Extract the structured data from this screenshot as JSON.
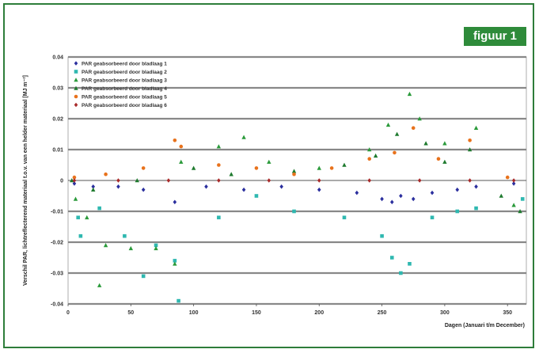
{
  "figure_label": "figuur 1",
  "chart_data": {
    "type": "scatter",
    "title": "",
    "xlabel": "Dagen (Januari t/m December)",
    "ylabel": "Verschil PAR, lichtreflecterend materiaal t.o.v. van een helder materiaal [MJ m⁻²]",
    "xlim": [
      0,
      365
    ],
    "ylim": [
      -0.04,
      0.04
    ],
    "x_ticks": [
      0,
      50,
      100,
      150,
      200,
      250,
      300,
      350
    ],
    "y_ticks": [
      0.04,
      0.03,
      0.02,
      0.01,
      0,
      -0.01,
      -0.02,
      -0.03,
      -0.04
    ],
    "y_tick_labels": [
      "0.04",
      "0.03",
      "0.02",
      "0.01",
      "0",
      "-0.01",
      "-0.02",
      "-0.03",
      "-0.04"
    ],
    "grid": "horizontal",
    "legend_position": "top-left",
    "series": [
      {
        "name": "PAR geabsorbeerd door bladlaag 1",
        "color": "#2b2f9e",
        "marker": "diamond",
        "points": [
          [
            5,
            -0.001
          ],
          [
            20,
            -0.002
          ],
          [
            40,
            -0.002
          ],
          [
            60,
            -0.003
          ],
          [
            85,
            -0.007
          ],
          [
            110,
            -0.002
          ],
          [
            140,
            -0.003
          ],
          [
            170,
            -0.002
          ],
          [
            200,
            -0.003
          ],
          [
            230,
            -0.004
          ],
          [
            250,
            -0.006
          ],
          [
            258,
            -0.007
          ],
          [
            265,
            -0.005
          ],
          [
            275,
            -0.006
          ],
          [
            290,
            -0.004
          ],
          [
            310,
            -0.003
          ],
          [
            325,
            -0.002
          ],
          [
            355,
            -0.001
          ]
        ]
      },
      {
        "name": "PAR geabsorbeerd door bladlaag 2",
        "color": "#2fb8b0",
        "marker": "square",
        "points": [
          [
            8,
            -0.012
          ],
          [
            10,
            -0.018
          ],
          [
            25,
            -0.009
          ],
          [
            45,
            -0.018
          ],
          [
            60,
            -0.031
          ],
          [
            70,
            -0.021
          ],
          [
            88,
            -0.039
          ],
          [
            85,
            -0.026
          ],
          [
            120,
            -0.012
          ],
          [
            150,
            -0.005
          ],
          [
            180,
            -0.01
          ],
          [
            220,
            -0.012
          ],
          [
            250,
            -0.018
          ],
          [
            258,
            -0.025
          ],
          [
            265,
            -0.03
          ],
          [
            272,
            -0.027
          ],
          [
            290,
            -0.012
          ],
          [
            310,
            -0.01
          ],
          [
            325,
            -0.009
          ],
          [
            362,
            -0.006
          ]
        ]
      },
      {
        "name": "PAR geabsorbeerd door bladlaag 3",
        "color": "#2a9a3a",
        "marker": "triangle",
        "points": [
          [
            6,
            -0.006
          ],
          [
            15,
            -0.012
          ],
          [
            25,
            -0.034
          ],
          [
            30,
            -0.021
          ],
          [
            50,
            -0.022
          ],
          [
            70,
            -0.022
          ],
          [
            85,
            -0.027
          ],
          [
            90,
            0.006
          ],
          [
            120,
            0.011
          ],
          [
            140,
            0.014
          ],
          [
            160,
            0.006
          ],
          [
            200,
            0.004
          ],
          [
            240,
            0.01
          ],
          [
            255,
            0.018
          ],
          [
            272,
            0.028
          ],
          [
            280,
            0.02
          ],
          [
            300,
            0.012
          ],
          [
            325,
            0.017
          ],
          [
            355,
            -0.008
          ]
        ]
      },
      {
        "name": "PAR geabsorbeerd door bladlaag 4",
        "color": "#1e7a2e",
        "marker": "triangle",
        "points": [
          [
            3,
            0.0
          ],
          [
            20,
            -0.003
          ],
          [
            55,
            0.0
          ],
          [
            100,
            0.004
          ],
          [
            130,
            0.002
          ],
          [
            180,
            0.003
          ],
          [
            220,
            0.005
          ],
          [
            245,
            0.008
          ],
          [
            262,
            0.015
          ],
          [
            285,
            0.012
          ],
          [
            300,
            0.006
          ],
          [
            320,
            0.01
          ],
          [
            345,
            -0.005
          ],
          [
            360,
            -0.01
          ]
        ]
      },
      {
        "name": "PAR geabsorbeerd door bladlaag 5",
        "color": "#e8721c",
        "marker": "circle",
        "points": [
          [
            5,
            0.001
          ],
          [
            30,
            0.002
          ],
          [
            60,
            0.004
          ],
          [
            85,
            0.013
          ],
          [
            90,
            0.011
          ],
          [
            120,
            0.005
          ],
          [
            150,
            0.004
          ],
          [
            180,
            0.002
          ],
          [
            210,
            0.004
          ],
          [
            240,
            0.007
          ],
          [
            260,
            0.009
          ],
          [
            275,
            0.017
          ],
          [
            295,
            0.007
          ],
          [
            320,
            0.013
          ],
          [
            350,
            0.001
          ]
        ]
      },
      {
        "name": "PAR geabsorbeerd door bladlaag 6",
        "color": "#a82a2a",
        "marker": "diamond",
        "points": [
          [
            5,
            0.0
          ],
          [
            40,
            0.0
          ],
          [
            80,
            0.0
          ],
          [
            120,
            0.0
          ],
          [
            160,
            0.0
          ],
          [
            200,
            0.0
          ],
          [
            240,
            0.0
          ],
          [
            280,
            0.0
          ],
          [
            320,
            0.0
          ],
          [
            355,
            0.0
          ]
        ]
      }
    ]
  }
}
